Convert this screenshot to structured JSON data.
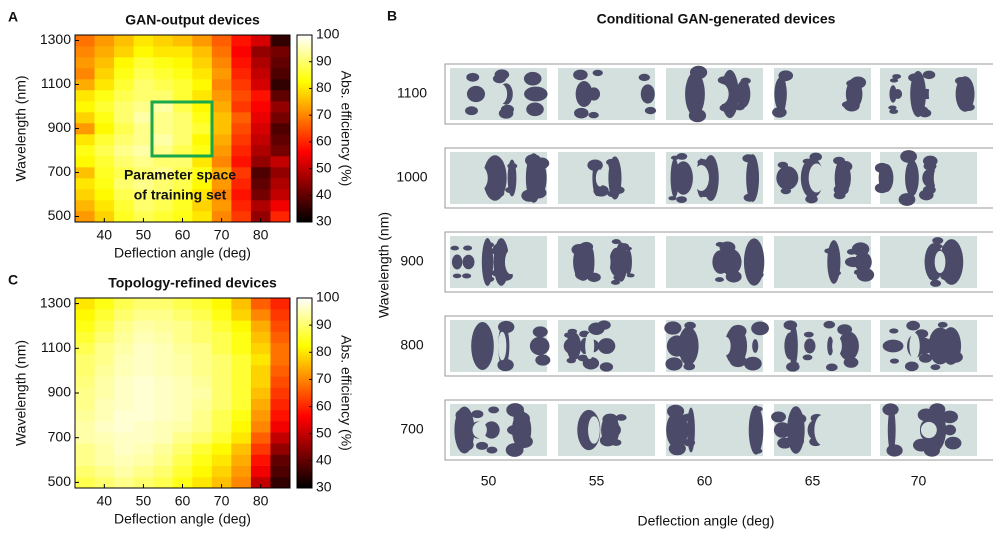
{
  "chart_data": [
    {
      "type": "heatmap",
      "label": "A",
      "title": "GAN-output devices",
      "xlabel": "Deflection angle (deg)",
      "ylabel": "Wavelength (nm)",
      "colorbar_label": "Abs. efficiency (%)",
      "annotation": [
        "Parameter space",
        "of training set"
      ],
      "x": [
        35,
        40,
        45,
        50,
        55,
        60,
        65,
        70,
        75,
        80,
        85
      ],
      "y": [
        500,
        550,
        600,
        650,
        700,
        750,
        800,
        850,
        900,
        950,
        1000,
        1050,
        1100,
        1150,
        1200,
        1250,
        1300
      ],
      "z": [
        [
          72,
          78,
          85,
          88,
          86,
          84,
          80,
          70,
          62,
          45,
          60
        ],
        [
          75,
          80,
          86,
          90,
          88,
          85,
          78,
          72,
          60,
          48,
          55
        ],
        [
          78,
          82,
          88,
          90,
          90,
          86,
          80,
          70,
          58,
          42,
          50
        ],
        [
          80,
          84,
          90,
          92,
          90,
          88,
          82,
          72,
          60,
          40,
          48
        ],
        [
          76,
          85,
          88,
          90,
          92,
          88,
          84,
          74,
          62,
          38,
          45
        ],
        [
          82,
          86,
          90,
          92,
          90,
          90,
          80,
          70,
          58,
          45,
          50
        ],
        [
          84,
          88,
          92,
          94,
          92,
          88,
          84,
          72,
          60,
          48,
          42
        ],
        [
          80,
          86,
          90,
          92,
          94,
          90,
          82,
          74,
          62,
          50,
          40
        ],
        [
          72,
          82,
          88,
          92,
          92,
          90,
          86,
          76,
          64,
          52,
          38
        ],
        [
          78,
          84,
          90,
          94,
          92,
          90,
          84,
          76,
          66,
          54,
          42
        ],
        [
          82,
          86,
          90,
          92,
          94,
          88,
          82,
          74,
          62,
          56,
          45
        ],
        [
          80,
          84,
          88,
          90,
          90,
          86,
          80,
          72,
          64,
          58,
          40
        ],
        [
          74,
          80,
          86,
          90,
          88,
          86,
          82,
          70,
          62,
          52,
          35
        ],
        [
          70,
          78,
          84,
          88,
          86,
          84,
          80,
          72,
          60,
          50,
          38
        ],
        [
          72,
          76,
          82,
          86,
          84,
          82,
          78,
          70,
          58,
          48,
          40
        ],
        [
          70,
          74,
          78,
          82,
          80,
          80,
          76,
          68,
          56,
          45,
          42
        ],
        [
          68,
          72,
          76,
          80,
          78,
          76,
          72,
          66,
          58,
          52,
          35
        ]
      ],
      "xlim": [
        32.5,
        87.5
      ],
      "ylim": [
        475,
        1325
      ],
      "xticks": [
        40,
        50,
        60,
        70,
        80
      ],
      "yticks": [
        500,
        700,
        900,
        1100,
        1300
      ],
      "clim": [
        30,
        100
      ],
      "cticks": [
        30,
        40,
        50,
        60,
        70,
        80,
        90,
        100
      ],
      "colormap": "hot"
    },
    {
      "type": "heatmap",
      "label": "C",
      "title": "Topology-refined devices",
      "xlabel": "Deflection angle (deg)",
      "ylabel": "Wavelength (nm)",
      "colorbar_label": "Abs. efficiency (%)",
      "x": [
        35,
        40,
        45,
        50,
        55,
        60,
        65,
        70,
        75,
        80,
        85
      ],
      "y": [
        500,
        550,
        600,
        650,
        700,
        750,
        800,
        850,
        900,
        950,
        1000,
        1050,
        1100,
        1150,
        1200,
        1250,
        1300
      ],
      "z": [
        [
          88,
          90,
          92,
          90,
          88,
          84,
          80,
          76,
          70,
          50,
          35
        ],
        [
          90,
          92,
          94,
          92,
          90,
          86,
          82,
          78,
          72,
          55,
          38
        ],
        [
          92,
          94,
          95,
          94,
          92,
          88,
          84,
          80,
          74,
          58,
          40
        ],
        [
          92,
          94,
          96,
          95,
          93,
          90,
          86,
          82,
          76,
          62,
          45
        ],
        [
          94,
          95,
          96,
          96,
          95,
          92,
          90,
          86,
          80,
          66,
          50
        ],
        [
          94,
          96,
          97,
          96,
          95,
          94,
          92,
          88,
          82,
          70,
          55
        ],
        [
          93,
          95,
          97,
          97,
          96,
          95,
          92,
          88,
          84,
          72,
          58
        ],
        [
          92,
          95,
          96,
          97,
          96,
          95,
          93,
          90,
          86,
          74,
          60
        ],
        [
          92,
          94,
          96,
          97,
          96,
          95,
          94,
          90,
          86,
          76,
          62
        ],
        [
          91,
          94,
          96,
          97,
          96,
          95,
          93,
          90,
          86,
          78,
          64
        ],
        [
          90,
          93,
          95,
          96,
          95,
          94,
          92,
          90,
          86,
          78,
          66
        ],
        [
          90,
          92,
          95,
          96,
          95,
          94,
          92,
          90,
          86,
          80,
          68
        ],
        [
          88,
          92,
          94,
          96,
          95,
          93,
          92,
          88,
          84,
          78,
          68
        ],
        [
          86,
          90,
          93,
          95,
          94,
          92,
          90,
          88,
          84,
          76,
          66
        ],
        [
          84,
          88,
          92,
          94,
          93,
          92,
          90,
          86,
          82,
          74,
          64
        ],
        [
          82,
          86,
          90,
          92,
          92,
          90,
          88,
          84,
          78,
          70,
          62
        ],
        [
          80,
          84,
          88,
          90,
          90,
          88,
          86,
          82,
          76,
          66,
          60
        ]
      ],
      "xlim": [
        32.5,
        87.5
      ],
      "ylim": [
        475,
        1325
      ],
      "xticks": [
        40,
        50,
        60,
        70,
        80
      ],
      "yticks": [
        500,
        700,
        900,
        1100,
        1300
      ],
      "clim": [
        30,
        100
      ],
      "cticks": [
        30,
        40,
        50,
        60,
        70,
        80,
        90,
        100
      ],
      "colormap": "hot"
    },
    {
      "type": "image-grid",
      "label": "B",
      "title": "Conditional GAN-generated devices",
      "xlabel": "Deflection angle (deg)",
      "ylabel": "Wavelength (nm)",
      "row_labels": [
        1100,
        1000,
        900,
        800,
        700
      ],
      "col_labels": [
        50,
        55,
        60,
        65,
        70
      ]
    }
  ]
}
